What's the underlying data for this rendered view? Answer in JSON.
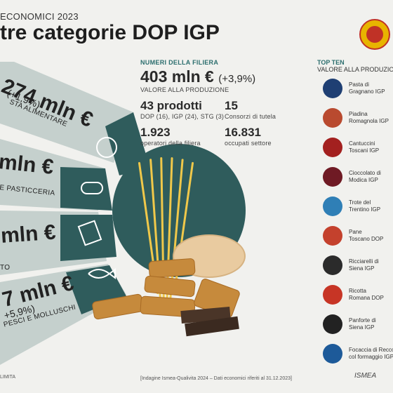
{
  "header": {
    "kicker": "ECONOMICI 2023",
    "title": "tre categorie DOP IGP"
  },
  "fan": [
    {
      "value": "274 mln €",
      "change": "(+1,9%)",
      "label": "STA ALIMENTARE"
    },
    {
      "value": "mln €",
      "change": "",
      "label": "E PASTICCERIA"
    },
    {
      "value": "mln €",
      "change": "",
      "label": "TO"
    },
    {
      "value": "7 mln €",
      "change": "+5,9%)",
      "label": "PESCI E MOLLUSCHI"
    }
  ],
  "stats": {
    "section_title": "NUMERI DELLA FILIERA",
    "total_value": "403 mln €",
    "total_change": "(+3,9%)",
    "total_label": "VALORE ALLA PRODUZIONE",
    "products_value": "43 prodotti",
    "products_detail": "DOP (16), IGP (24), STG (3)",
    "consortia_value": "15",
    "consortia_label": "Consorzi di tutela",
    "operators_value": "1.923",
    "operators_label": "operatori della filiera",
    "employed_value": "16.831",
    "employed_label": "occupati settore"
  },
  "top_ten": {
    "title": "TOP TEN",
    "subtitle": "VALORE ALLA PRODUZIONE",
    "items": [
      {
        "name1": "Pasta di",
        "name2": "Gragnano IGP",
        "color": "#1f3f73"
      },
      {
        "name1": "Piadina",
        "name2": "Romagnola IGP",
        "color": "#b94a2f"
      },
      {
        "name1": "Cantuccini",
        "name2": "Toscani IGP",
        "color": "#a3201f"
      },
      {
        "name1": "Cioccolato di",
        "name2": "Modica IGP",
        "color": "#6f1a24"
      },
      {
        "name1": "Trote del",
        "name2": "Trentino IGP",
        "color": "#2f7fb6"
      },
      {
        "name1": "Pane",
        "name2": "Toscano DOP",
        "color": "#c4412d"
      },
      {
        "name1": "Ricciarelli di",
        "name2": "Siena IGP",
        "color": "#2b2b2b"
      },
      {
        "name1": "Ricotta",
        "name2": "Romana DOP",
        "color": "#c73525"
      },
      {
        "name1": "Panforte di",
        "name2": "Siena IGP",
        "color": "#222222"
      },
      {
        "name1": "Focaccia di Recco",
        "name2": "col formaggio IGP",
        "color": "#1d5a99"
      }
    ]
  },
  "footer": {
    "note": "[Indagine Ismea-Qualivita 2024 – Dati economici riferiti al 31.12.2023]",
    "left": "LIMITA",
    "brand": "ISMEA"
  },
  "colors": {
    "teal": "#2f5c5c",
    "light_band": "#c5d0cd",
    "mid_band": "#aebdb9"
  }
}
